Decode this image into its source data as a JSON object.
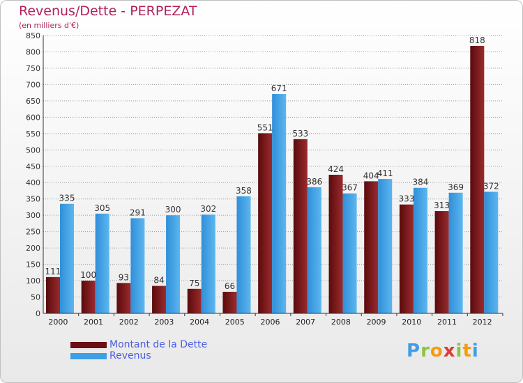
{
  "page": {
    "title": "Revenus/Dette - PERPEZAT",
    "subtitle": "(en milliers d'€)",
    "logo": "Proxiti"
  },
  "chart_data": {
    "type": "bar",
    "title": "Revenus/Dette - PERPEZAT",
    "subtitle": "(en milliers d'€)",
    "categories": [
      "2000",
      "2001",
      "2002",
      "2003",
      "2004",
      "2005",
      "2006",
      "2007",
      "2008",
      "2009",
      "2010",
      "2011",
      "2012"
    ],
    "series": [
      {
        "name": "Montant de la Dette",
        "color": "#7a1518",
        "values": [
          111,
          100,
          93,
          84,
          75,
          66,
          551,
          533,
          424,
          404,
          333,
          313,
          818
        ]
      },
      {
        "name": "Revenus",
        "color": "#3e9ee6",
        "values": [
          335,
          305,
          291,
          300,
          302,
          358,
          671,
          386,
          367,
          411,
          384,
          369,
          372
        ]
      }
    ],
    "ylim": [
      0,
      850
    ],
    "yticks": [
      0,
      50,
      100,
      150,
      200,
      250,
      300,
      350,
      400,
      450,
      500,
      550,
      600,
      650,
      700,
      750,
      800,
      850
    ],
    "grid": true,
    "legend": "bottom-left"
  }
}
